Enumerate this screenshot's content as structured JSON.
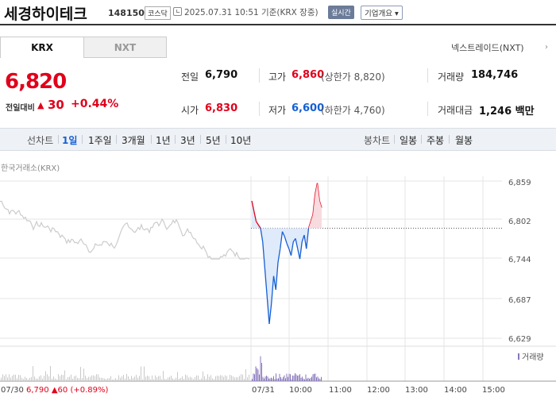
{
  "header": {
    "stock_name": "세경하이테크",
    "stock_code": "148150",
    "market": "코스닥",
    "timestamp": "2025.07.31 10:51 기준(KRX 장중)",
    "realtime_label": "실시간",
    "company_overview_label": "기업개요 ▾"
  },
  "tabs": [
    {
      "label": "KRX"
    },
    {
      "label": "NXT"
    }
  ],
  "nextrade_link": "넥스트레이드(NXT)",
  "price": {
    "current": "6,820",
    "change_label": "전일대비",
    "change_value": "30",
    "change_rate": "+0.44%"
  },
  "stats": {
    "prev_close_label": "전일",
    "prev_close": "6,790",
    "high_label": "고가",
    "high": "6,860",
    "upper_limit": "(상한가 8,820)",
    "volume_label": "거래량",
    "volume": "184,746",
    "open_label": "시가",
    "open": "6,830",
    "low_label": "저가",
    "low": "6,600",
    "lower_limit": "(하한가 4,760)",
    "amount_label": "거래대금",
    "amount": "1,246 백만"
  },
  "periods": {
    "line_label": "선차트",
    "line_items": [
      "1일",
      "1주일",
      "3개월",
      "1년",
      "3년",
      "5년",
      "10년"
    ],
    "candle_label": "봉차트",
    "candle_items": [
      "일봉",
      "주봉",
      "월봉"
    ]
  },
  "chart": {
    "source": "한국거래소(KRX)",
    "y_ticks": [
      "6,859",
      "6,802",
      "6,744",
      "6,687",
      "6,629"
    ],
    "volume_label": "거래량",
    "x_ticks": [
      "07/31",
      "10:00",
      "11:00",
      "12:00",
      "13:00",
      "14:00",
      "15:00"
    ],
    "prev_day": {
      "date": "07/30",
      "close": "6,790",
      "change": "▲60",
      "rate": "(+0.89%)"
    }
  },
  "chart_data": {
    "type": "line",
    "ylim": [
      6629,
      6859
    ],
    "baseline": 6790,
    "y_ticks": [
      6859,
      6802,
      6744,
      6687,
      6629
    ],
    "x_ticks": [
      "07/31",
      "10:00",
      "11:00",
      "12:00",
      "13:00",
      "14:00",
      "15:00"
    ],
    "series": [
      {
        "values": [
          6830,
          6815,
          6800,
          6795,
          6790,
          6770,
          6730,
          6690,
          6650,
          6680,
          6720,
          6700,
          6740,
          6760,
          6785,
          6778,
          6768,
          6760,
          6750,
          6770,
          6775,
          6760,
          6745,
          6770,
          6780,
          6760,
          6790,
          6800,
          6810,
          6840,
          6856,
          6830,
          6820
        ]
      }
    ],
    "colors": {
      "up": "#e0001b",
      "down": "#1560d4",
      "prev_day": "#cccccc",
      "volume": "#8877bb"
    }
  }
}
